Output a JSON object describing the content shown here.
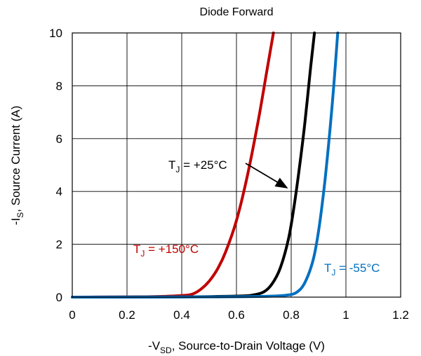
{
  "chart_data": {
    "type": "line",
    "title": "Diode Forward",
    "xlabel": {
      "prefix": "-V",
      "sub": "SD",
      "suffix": ", Source-to-Drain Voltage (V)"
    },
    "ylabel": {
      "prefix": "-I",
      "sub": "S",
      "suffix": ", Source Current (A)"
    },
    "xlim": [
      0,
      1.2
    ],
    "ylim": [
      0,
      10
    ],
    "xticks": [
      0,
      0.2,
      0.4,
      0.6,
      0.8,
      1,
      1.2
    ],
    "xtick_labels": [
      "0",
      "0.2",
      "0.4",
      "0.6",
      "0.8",
      "1",
      "1.2"
    ],
    "yticks": [
      0,
      2,
      4,
      6,
      8,
      10
    ],
    "ytick_labels": [
      "0",
      "2",
      "4",
      "6",
      "8",
      "10"
    ],
    "grid": true,
    "series": [
      {
        "name": "TJ = +150°C",
        "label": {
          "prefix": "T",
          "sub": "J",
          "suffix": " = +150°C"
        },
        "color": "#c00000",
        "x": [
          0,
          0.2,
          0.3,
          0.4,
          0.44,
          0.47,
          0.5,
          0.53,
          0.56,
          0.6,
          0.64,
          0.68,
          0.71,
          0.735
        ],
        "y": [
          0,
          0.01,
          0.02,
          0.06,
          0.12,
          0.3,
          0.6,
          1.05,
          1.7,
          2.9,
          4.6,
          6.7,
          8.5,
          10
        ]
      },
      {
        "name": "TJ = +25°C",
        "label": {
          "prefix": "T",
          "sub": "J",
          "suffix": " = +25°C"
        },
        "color": "#000000",
        "x": [
          0,
          0.4,
          0.6,
          0.66,
          0.7,
          0.73,
          0.76,
          0.79,
          0.81,
          0.83,
          0.85,
          0.87,
          0.885
        ],
        "y": [
          0,
          0.01,
          0.04,
          0.08,
          0.2,
          0.5,
          1.1,
          2.2,
          3.4,
          4.9,
          6.6,
          8.6,
          10
        ]
      },
      {
        "name": "TJ = -55°C",
        "label": {
          "prefix": "T",
          "sub": "J",
          "suffix": " = -55°C"
        },
        "color": "#0070c0",
        "x": [
          0,
          0.5,
          0.7,
          0.78,
          0.82,
          0.85,
          0.88,
          0.9,
          0.92,
          0.935,
          0.95,
          0.96,
          0.97
        ],
        "y": [
          0,
          0.01,
          0.03,
          0.07,
          0.18,
          0.55,
          1.4,
          2.5,
          4.1,
          5.6,
          7.3,
          8.6,
          10
        ]
      }
    ]
  }
}
